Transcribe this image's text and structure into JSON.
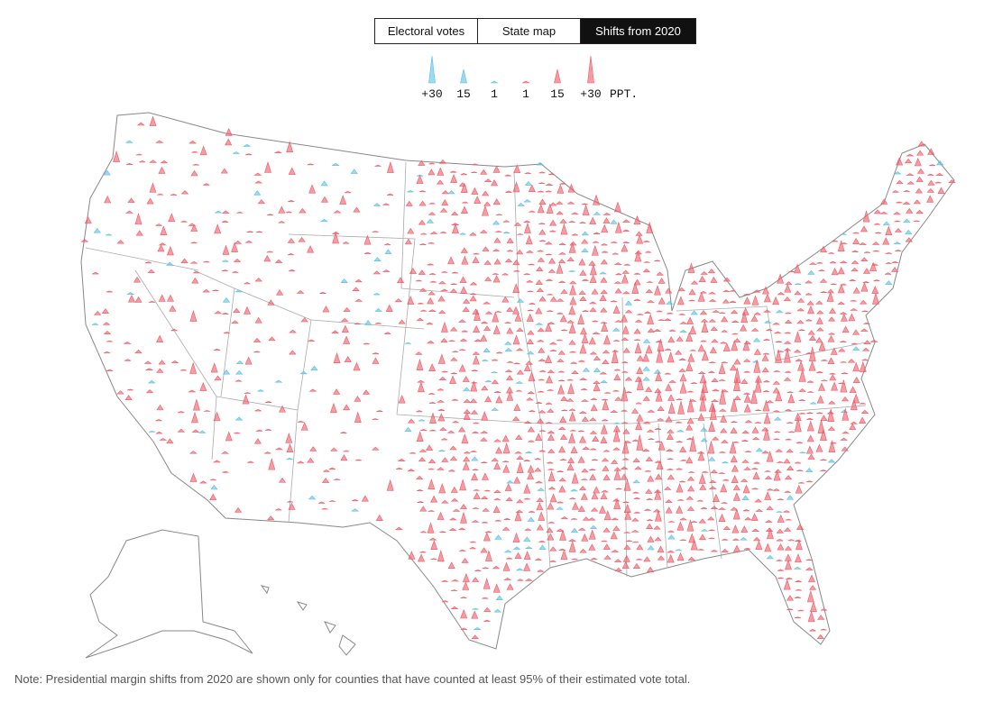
{
  "tabs": [
    "Electoral votes",
    "State map",
    "Shifts from 2020"
  ],
  "legend": {
    "items": [
      {
        "label": "+30",
        "party": "dem",
        "size": "large"
      },
      {
        "label": "15",
        "party": "dem",
        "size": "medium"
      },
      {
        "label": "1",
        "party": "dem",
        "size": "small"
      },
      {
        "label": "1",
        "party": "rep",
        "size": "small"
      },
      {
        "label": "15",
        "party": "rep",
        "size": "medium"
      },
      {
        "label": "+30",
        "party": "rep",
        "size": "large"
      }
    ],
    "unit": "PPT."
  },
  "colors": {
    "dem": "#5bbfe6",
    "rep": "#ee5a66"
  },
  "note": "Note: Presidential margin shifts from 2020 are shown only for counties that have counted at least 95% of their estimated vote total."
}
